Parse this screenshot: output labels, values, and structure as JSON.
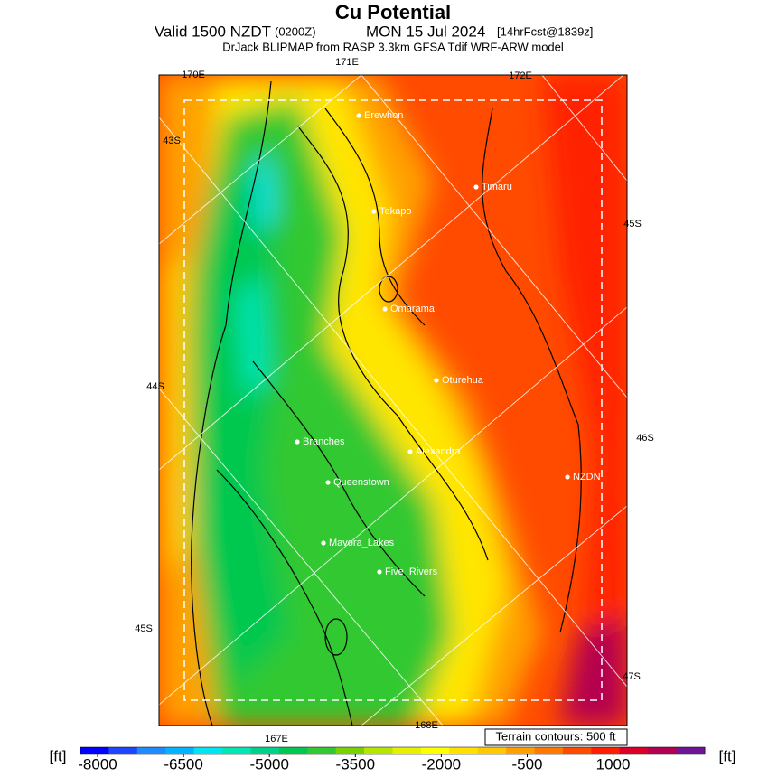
{
  "header": {
    "title": "Cu Potential",
    "valid_prefix": "Valid 1500 NZDT",
    "valid_zone": "(0200Z)",
    "valid_date": "MON 15 Jul 2024",
    "forecast": "[14hrFcst@1839z]",
    "model": "DrJack BLIPMAP from RASP 3.3km GFSA Tdif WRF-ARW model"
  },
  "map": {
    "lon_labels": [
      "170E",
      "171E",
      "172E",
      "167E",
      "168E"
    ],
    "lat_labels": [
      "43S",
      "44S",
      "45S",
      "45S",
      "46S",
      "47S"
    ],
    "places": [
      "Erewhon",
      "Timaru",
      "Tekapo",
      "Omarama",
      "Oturehua",
      "Branches",
      "Alexandra",
      "Queenstown",
      "NZDN",
      "Mavora_Lakes",
      "Five_Rivers"
    ],
    "contour_note": "Terrain contours: 500 ft"
  },
  "colorbar": {
    "unit": "[ft]",
    "lim": [
      -8300,
      2600
    ],
    "ticks": [
      -8000,
      -6500,
      -5000,
      -3500,
      -2000,
      -500,
      1000
    ],
    "colors": [
      "#0000ff",
      "#1e46ff",
      "#1e8cff",
      "#00b4ff",
      "#00e6f0",
      "#00e6b4",
      "#00d28c",
      "#00c850",
      "#32c832",
      "#78d200",
      "#b4e600",
      "#e6f000",
      "#ffff00",
      "#ffe100",
      "#ffc800",
      "#ffa000",
      "#ff7800",
      "#ff4b00",
      "#ff1e00",
      "#dc0028",
      "#b40050",
      "#6e1496"
    ]
  }
}
